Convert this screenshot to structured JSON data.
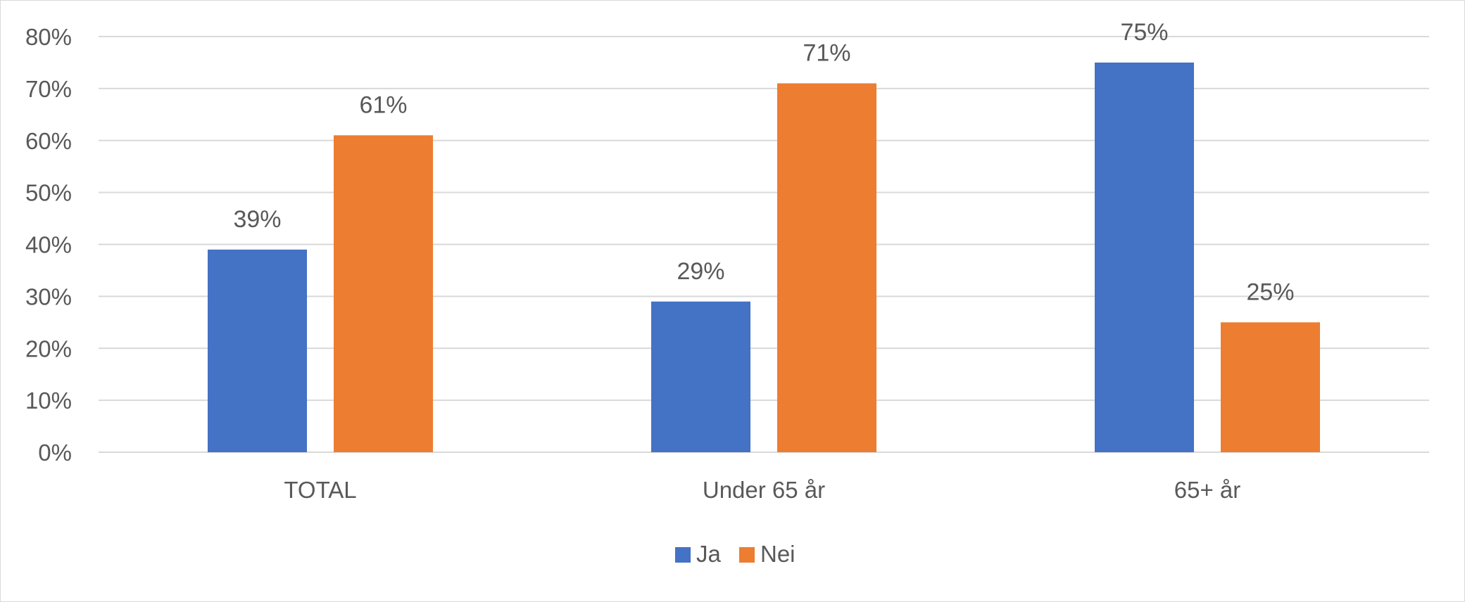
{
  "chart_data": {
    "type": "bar",
    "categories": [
      "TOTAL",
      "Under 65 år",
      "65+ år"
    ],
    "series": [
      {
        "name": "Ja",
        "color": "#4472C4",
        "values": [
          39,
          29,
          75
        ],
        "labels": [
          "39%",
          "29%",
          "75%"
        ]
      },
      {
        "name": "Nei",
        "color": "#ED7D31",
        "values": [
          61,
          71,
          25
        ],
        "labels": [
          "61%",
          "71%",
          "25%"
        ]
      }
    ],
    "ylim": [
      0,
      80
    ],
    "yticks": [
      "0%",
      "10%",
      "20%",
      "30%",
      "40%",
      "50%",
      "60%",
      "70%",
      "80%"
    ],
    "ytick_values": [
      0,
      10,
      20,
      30,
      40,
      50,
      60,
      70,
      80
    ],
    "grid": true,
    "legend_position": "bottom",
    "title": "",
    "xlabel": "",
    "ylabel": ""
  }
}
